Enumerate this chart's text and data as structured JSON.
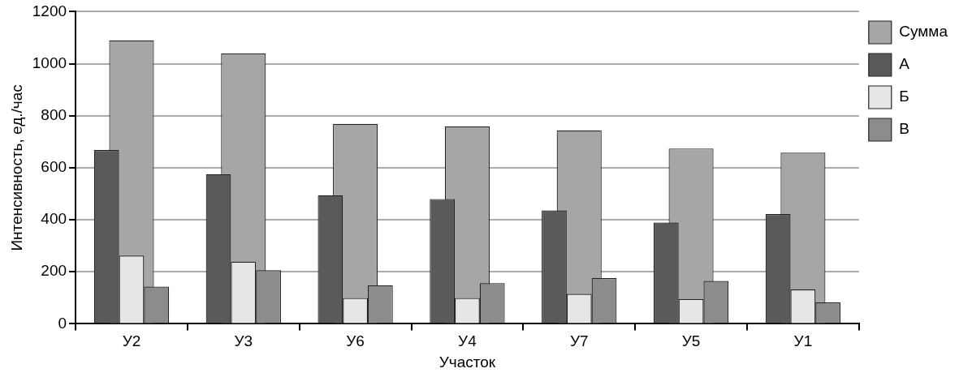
{
  "chart_data": {
    "type": "bar",
    "xlabel": "Участок",
    "ylabel": "Интенсивность, ед./час",
    "categories": [
      "У2",
      "У3",
      "У6",
      "У4",
      "У7",
      "У5",
      "У1"
    ],
    "series": [
      {
        "name": "Сумма",
        "color": "#a6a6a6",
        "values": [
          1090,
          1039,
          769,
          759,
          744,
          674,
          658
        ]
      },
      {
        "name": "А",
        "color": "#5a5a5a",
        "values": [
          668,
          575,
          494,
          480,
          436,
          389,
          422
        ]
      },
      {
        "name": "Б",
        "color": "#e6e6e6",
        "values": [
          262,
          239,
          99,
          99,
          115,
          95,
          132
        ]
      },
      {
        "name": "В",
        "color": "#8c8c8c",
        "values": [
          143,
          206,
          148,
          156,
          176,
          165,
          82
        ]
      }
    ],
    "ylim": [
      0,
      1200
    ],
    "yticks": [
      0,
      200,
      400,
      600,
      800,
      1000,
      1200
    ],
    "grid": "y",
    "legend": "top right"
  }
}
